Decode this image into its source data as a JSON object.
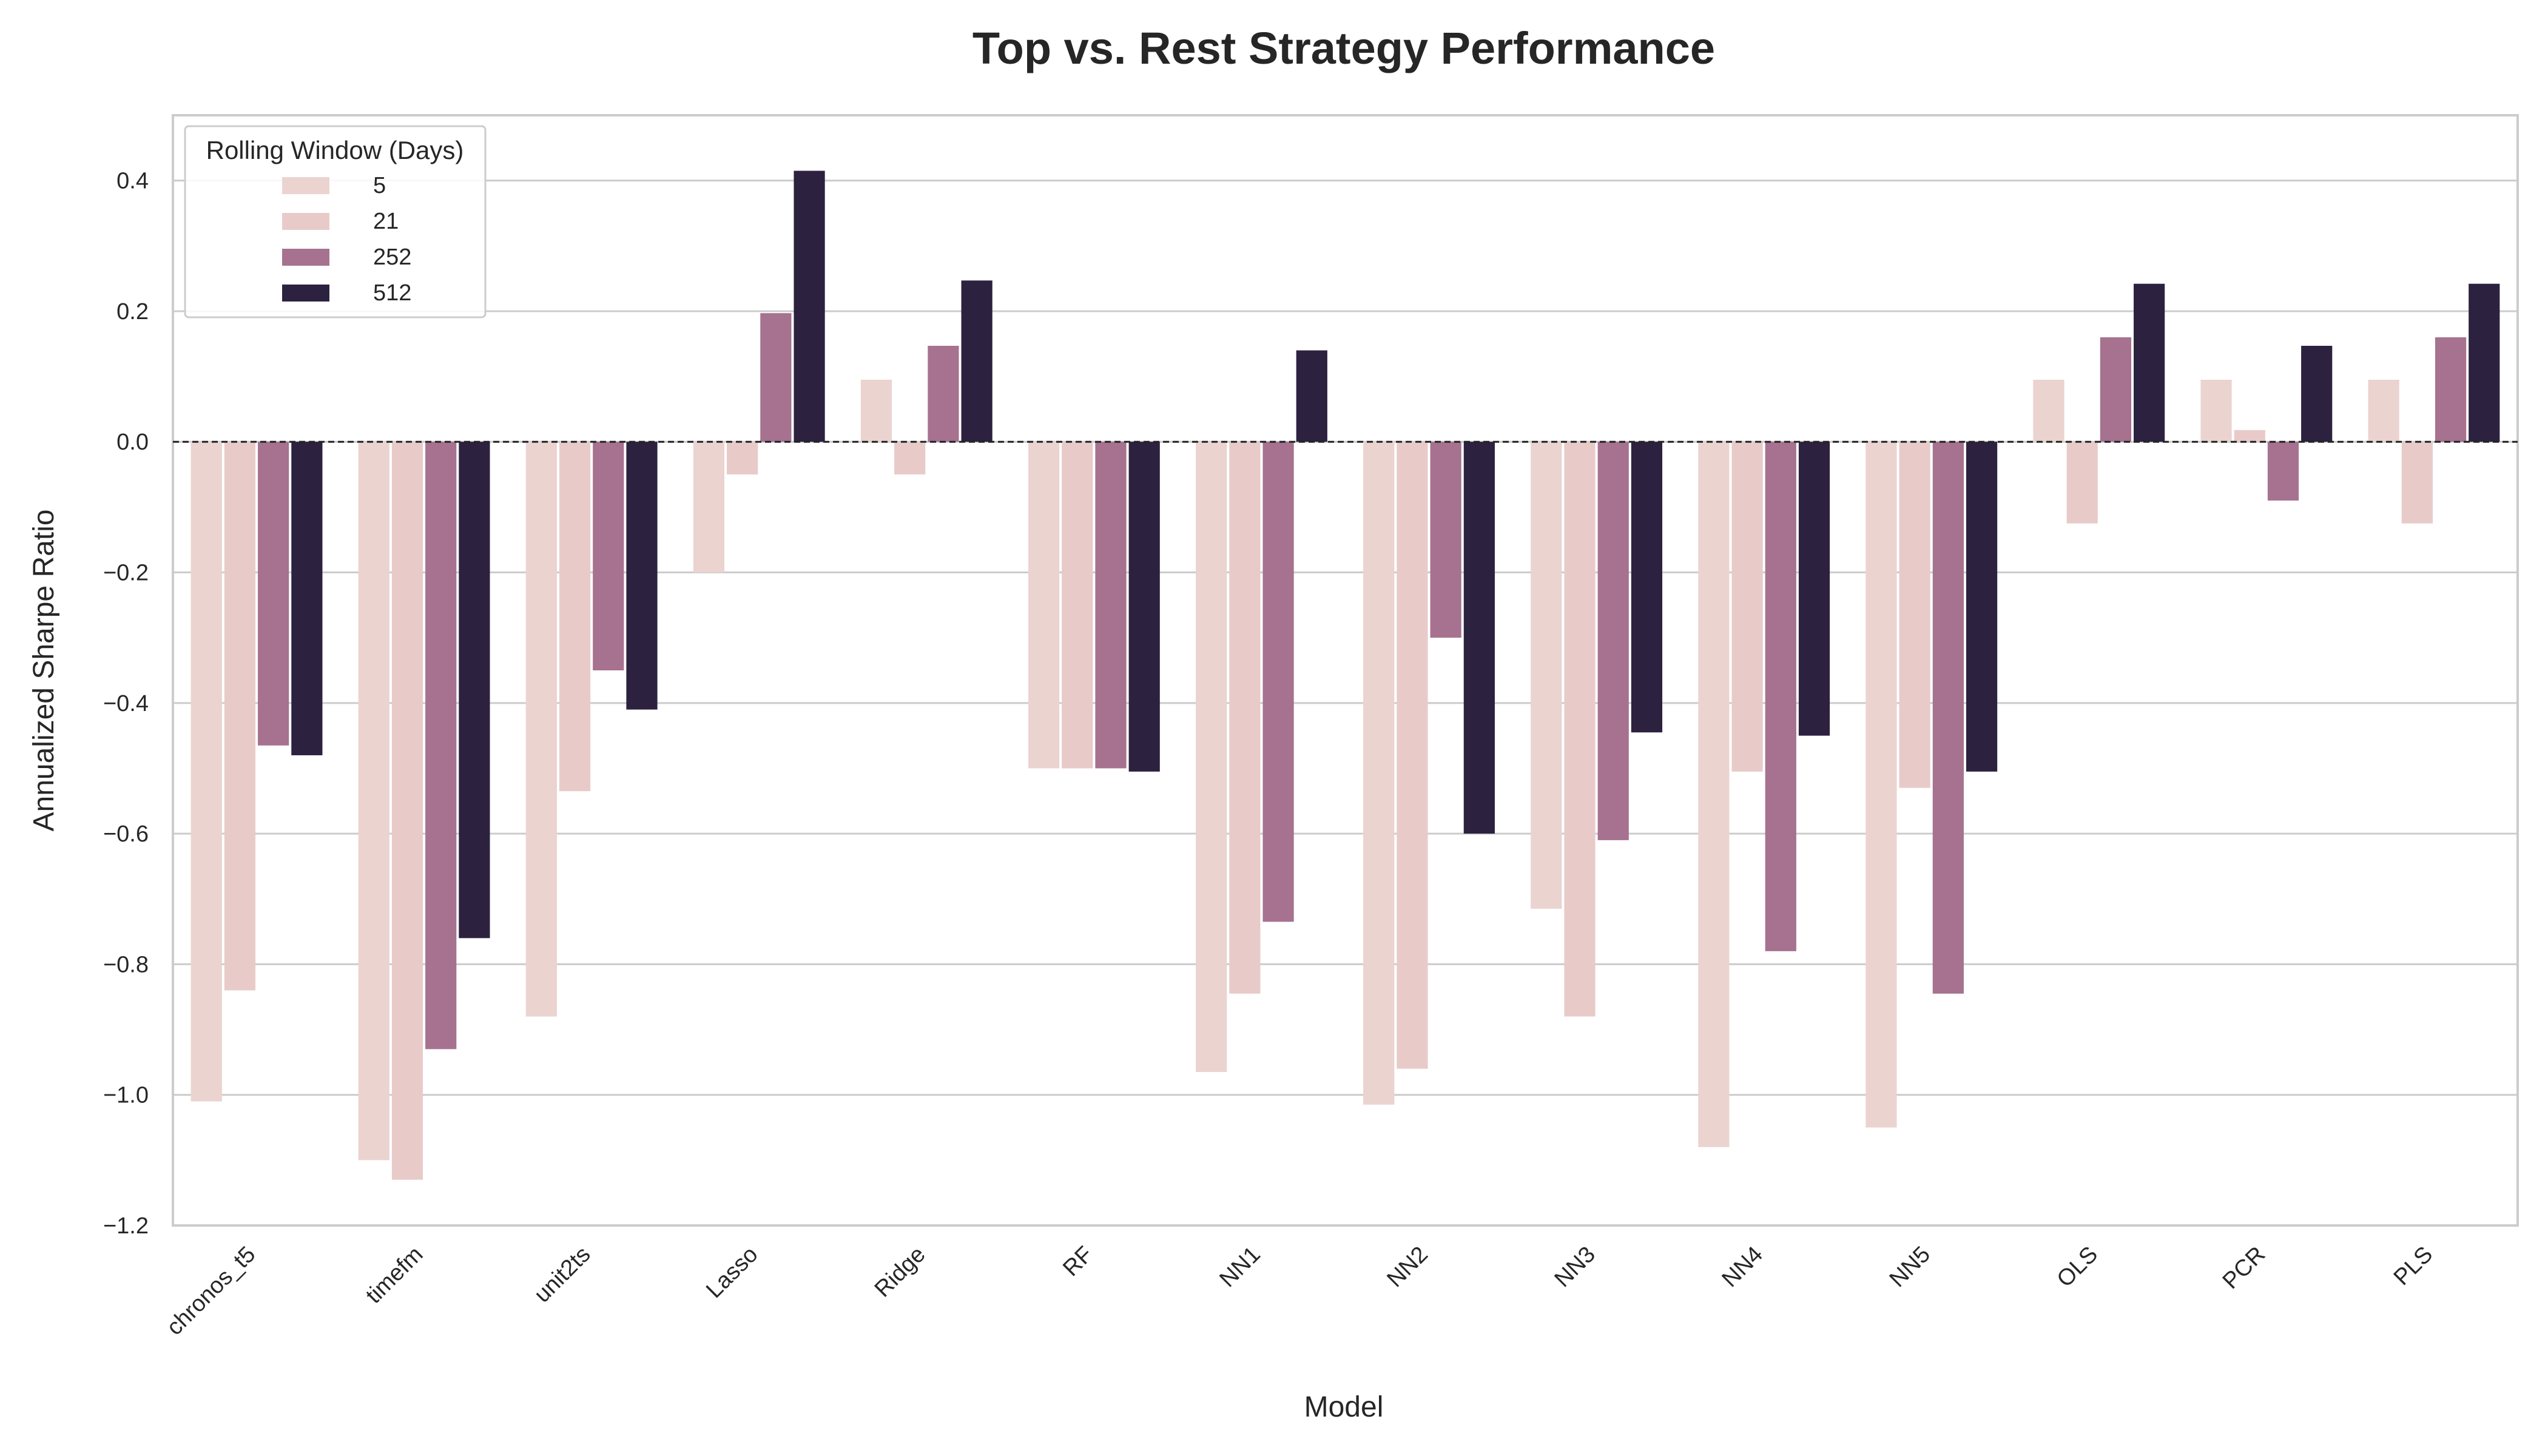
{
  "chart_data": {
    "type": "bar",
    "title": "Top vs. Rest Strategy Performance",
    "xlabel": "Model",
    "ylabel": "Annualized Sharpe Ratio",
    "ylim": [
      -1.2,
      0.5
    ],
    "yticks": [
      -1.2,
      -1.0,
      -0.8,
      -0.6,
      -0.4,
      -0.2,
      0.0,
      0.2,
      0.4
    ],
    "ytick_labels": [
      "−1.2",
      "−1.0",
      "−0.8",
      "−0.6",
      "−0.4",
      "−0.2",
      "0.0",
      "0.2",
      "0.4"
    ],
    "grid": true,
    "zero_line": "dashed",
    "legend": {
      "title": "Rolling Window (Days)",
      "placement": "top-left"
    },
    "categories": [
      "chronos_t5",
      "timefm",
      "unit2ts",
      "Lasso",
      "Ridge",
      "RF",
      "NN1",
      "NN2",
      "NN3",
      "NN4",
      "NN5",
      "OLS",
      "PCR",
      "PLS"
    ],
    "series": [
      {
        "name": "5",
        "color": "#ebd3d0",
        "values": [
          -1.01,
          -1.1,
          -0.88,
          -0.2,
          0.095,
          -0.5,
          -0.965,
          -1.015,
          -0.715,
          -1.08,
          -1.05,
          0.095,
          0.095,
          0.095
        ]
      },
      {
        "name": "21",
        "color": "#e8cbc9",
        "values": [
          -0.84,
          -1.13,
          -0.535,
          -0.05,
          -0.05,
          -0.5,
          -0.845,
          -0.96,
          -0.88,
          -0.505,
          -0.53,
          -0.125,
          0.018,
          -0.125
        ]
      },
      {
        "name": "252",
        "color": "#a6728f",
        "values": [
          -0.465,
          -0.93,
          -0.35,
          0.197,
          0.147,
          -0.5,
          -0.735,
          -0.3,
          -0.61,
          -0.78,
          -0.845,
          0.16,
          -0.09,
          0.16
        ]
      },
      {
        "name": "512",
        "color": "#2d2140",
        "values": [
          -0.48,
          -0.76,
          -0.41,
          0.415,
          0.247,
          -0.505,
          0.14,
          -0.6,
          -0.445,
          -0.45,
          -0.505,
          0.242,
          0.147,
          0.242
        ]
      }
    ]
  }
}
